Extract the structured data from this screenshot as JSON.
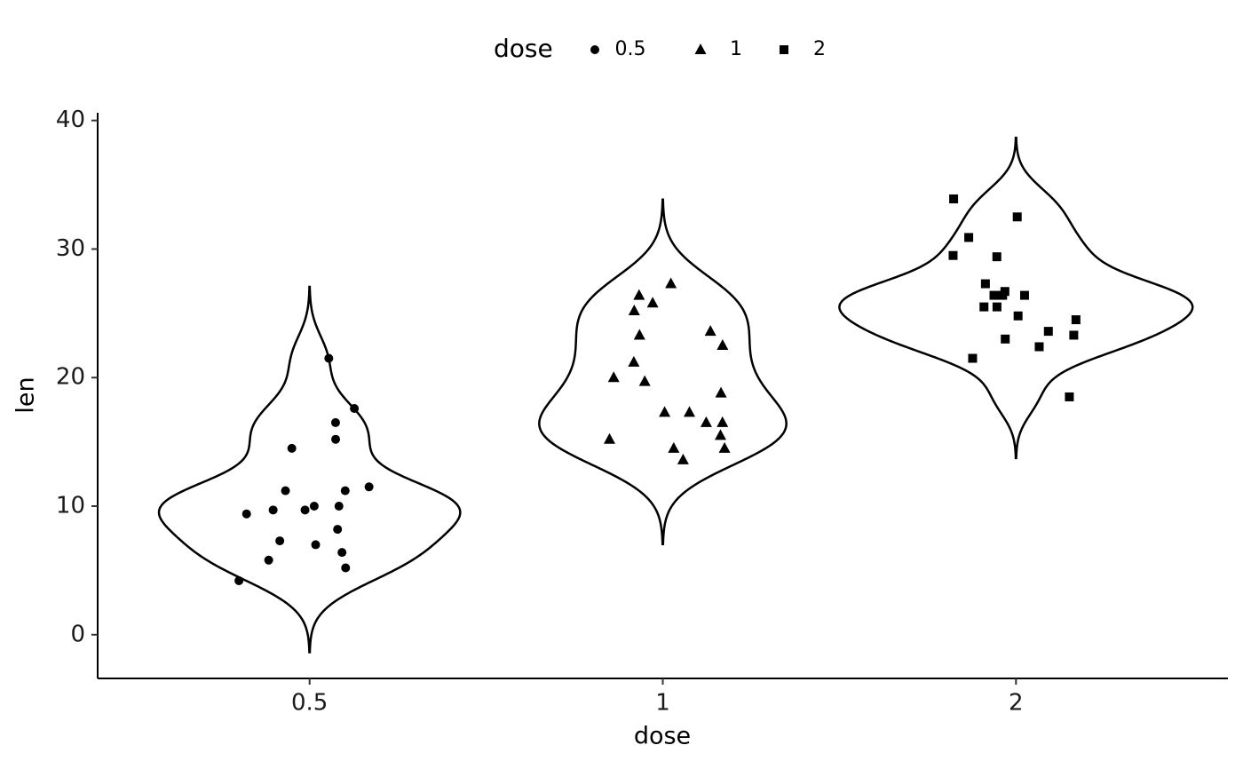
{
  "chart_data": {
    "type": "violin",
    "x_label": "dose",
    "y_label": "len",
    "legend_title": "dose",
    "legend_position": "top",
    "categories": [
      "0.5",
      "1",
      "2"
    ],
    "ylim": [
      -3.4,
      40.6
    ],
    "yticks": [
      0,
      10,
      20,
      30,
      40
    ],
    "color": "#000000",
    "series": [
      {
        "name": "0.5",
        "shape": "circle",
        "values": [
          4.2,
          11.5,
          7.3,
          5.8,
          6.4,
          10,
          11.2,
          11.2,
          5.2,
          7,
          15.2,
          21.5,
          17.6,
          9.7,
          14.5,
          10,
          8.2,
          9.4,
          16.5,
          9.7
        ]
      },
      {
        "name": "1",
        "shape": "triangle",
        "values": [
          16.5,
          16.5,
          15.2,
          17.3,
          22.5,
          17.3,
          13.6,
          14.5,
          18.8,
          15.5,
          19.7,
          23.3,
          23.6,
          26.4,
          20,
          25.2,
          25.8,
          21.2,
          14.5,
          27.3
        ]
      },
      {
        "name": "2",
        "shape": "square",
        "values": [
          23.6,
          18.5,
          33.9,
          25.5,
          26.4,
          32.5,
          26.7,
          21.5,
          23.3,
          29.5,
          25.5,
          26.4,
          22.4,
          24.5,
          24.8,
          30.9,
          26.4,
          27.3,
          29.4,
          23
        ]
      }
    ]
  }
}
